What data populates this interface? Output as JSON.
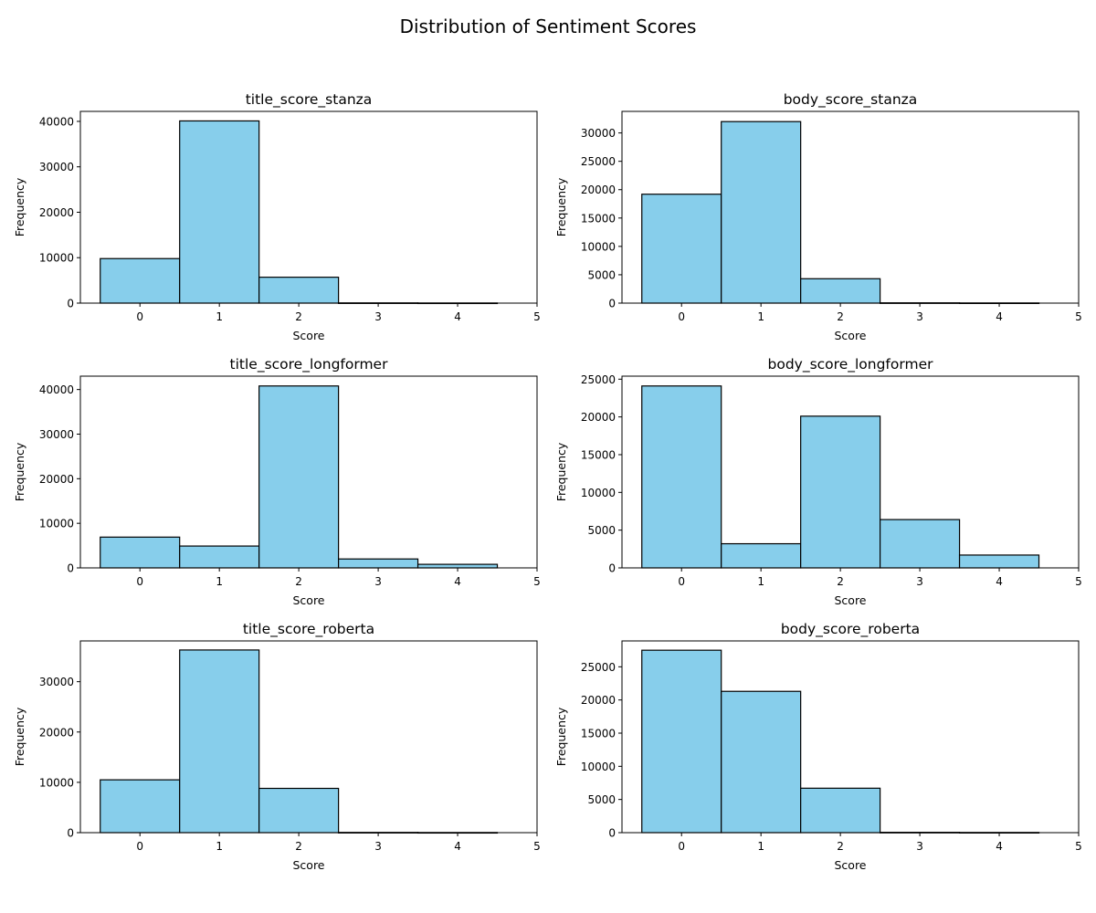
{
  "figure": {
    "suptitle": "Distribution of Sentiment Scores"
  },
  "style": {
    "bar_fill": "#87CEEB",
    "bar_edge": "#000000",
    "background": "#ffffff"
  },
  "chart_data": [
    {
      "type": "bar",
      "title": "title_score_stanza",
      "xlabel": "Score",
      "ylabel": "Frequency",
      "categories": [
        "0",
        "1",
        "2",
        "3",
        "4"
      ],
      "values": [
        9800,
        40100,
        5700,
        50,
        30
      ],
      "xlim": [
        -0.75,
        5
      ],
      "ylim": [
        0,
        42200
      ],
      "xticks": [
        0,
        1,
        2,
        3,
        4,
        5
      ],
      "yticks": [
        0,
        10000,
        20000,
        30000,
        40000
      ],
      "grid": false
    },
    {
      "type": "bar",
      "title": "body_score_stanza",
      "xlabel": "Score",
      "ylabel": "Frequency",
      "categories": [
        "0",
        "1",
        "2",
        "3",
        "4"
      ],
      "values": [
        19200,
        32000,
        4300,
        50,
        30
      ],
      "xlim": [
        -0.75,
        5
      ],
      "ylim": [
        0,
        33800
      ],
      "xticks": [
        0,
        1,
        2,
        3,
        4,
        5
      ],
      "yticks": [
        0,
        5000,
        10000,
        15000,
        20000,
        25000,
        30000
      ],
      "grid": false
    },
    {
      "type": "bar",
      "title": "title_score_longformer",
      "xlabel": "Score",
      "ylabel": "Frequency",
      "categories": [
        "0",
        "1",
        "2",
        "3",
        "4"
      ],
      "values": [
        6900,
        4900,
        40800,
        2000,
        800
      ],
      "xlim": [
        -0.75,
        5
      ],
      "ylim": [
        0,
        43000
      ],
      "xticks": [
        0,
        1,
        2,
        3,
        4,
        5
      ],
      "yticks": [
        0,
        10000,
        20000,
        30000,
        40000
      ],
      "grid": false
    },
    {
      "type": "bar",
      "title": "body_score_longformer",
      "xlabel": "Score",
      "ylabel": "Frequency",
      "categories": [
        "0",
        "1",
        "2",
        "3",
        "4"
      ],
      "values": [
        24100,
        3200,
        20100,
        6400,
        1700
      ],
      "xlim": [
        -0.75,
        5
      ],
      "ylim": [
        0,
        25400
      ],
      "xticks": [
        0,
        1,
        2,
        3,
        4,
        5
      ],
      "yticks": [
        0,
        5000,
        10000,
        15000,
        20000,
        25000
      ],
      "grid": false
    },
    {
      "type": "bar",
      "title": "title_score_roberta",
      "xlabel": "Score",
      "ylabel": "Frequency",
      "categories": [
        "0",
        "1",
        "2",
        "3",
        "4"
      ],
      "values": [
        10500,
        36300,
        8800,
        50,
        30
      ],
      "xlim": [
        -0.75,
        5
      ],
      "ylim": [
        0,
        38100
      ],
      "xticks": [
        0,
        1,
        2,
        3,
        4,
        5
      ],
      "yticks": [
        0,
        10000,
        20000,
        30000
      ],
      "grid": false
    },
    {
      "type": "bar",
      "title": "body_score_roberta",
      "xlabel": "Score",
      "ylabel": "Frequency",
      "categories": [
        "0",
        "1",
        "2",
        "3",
        "4"
      ],
      "values": [
        27500,
        21300,
        6700,
        50,
        30
      ],
      "xlim": [
        -0.75,
        5
      ],
      "ylim": [
        0,
        28900
      ],
      "xticks": [
        0,
        1,
        2,
        3,
        4,
        5
      ],
      "yticks": [
        0,
        5000,
        10000,
        15000,
        20000,
        25000
      ],
      "grid": false
    }
  ]
}
